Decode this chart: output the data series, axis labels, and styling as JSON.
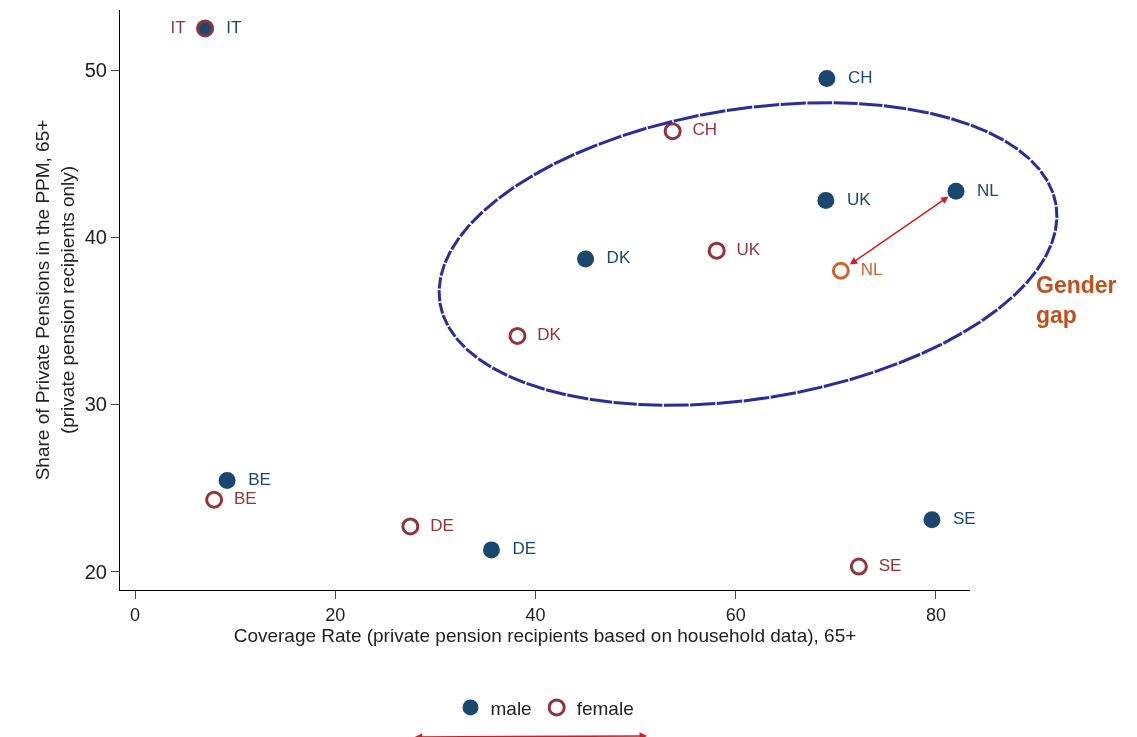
{
  "chart_data": {
    "type": "scatter",
    "xlabel": "Coverage Rate (private pension recipients based on household data), 65+",
    "ylabel": "Share of Private Pensions in the PPM, 65+\n(private pension recipients only)",
    "xlim": [
      -1.5,
      83.4
    ],
    "ylim": [
      18.9,
      53.6
    ],
    "xticks": [
      0,
      20,
      40,
      60,
      80
    ],
    "yticks": [
      20,
      30,
      40,
      50
    ],
    "legend": "bottom",
    "marker": "circle",
    "series": [
      {
        "name": "male",
        "color": "#1a476f",
        "x": [
          7.0,
          69.1,
          82.0,
          69.0,
          45.0,
          9.2,
          35.6,
          79.6
        ],
        "values": [
          52.5,
          49.5,
          42.75,
          42.2,
          38.7,
          25.45,
          21.3,
          23.1
        ],
        "value_labels": [
          "IT",
          "CH",
          "NL",
          "UK",
          "DK",
          "BE",
          "DE",
          "SE"
        ]
      },
      {
        "name": "female",
        "color": "#90353b",
        "colors": [
          null,
          null,
          null,
          "#d0632a",
          null,
          null,
          null,
          null
        ],
        "x": [
          7.0,
          53.7,
          58.1,
          70.5,
          38.2,
          7.9,
          27.5,
          72.3
        ],
        "values": [
          52.5,
          46.35,
          39.2,
          38.0,
          34.1,
          24.3,
          22.7,
          20.3
        ],
        "value_labels": [
          "IT",
          "CH",
          "UK",
          "NL",
          "DK",
          "BE",
          "DE",
          "SE"
        ]
      }
    ],
    "annotations": [
      "Gender gap"
    ]
  }
}
